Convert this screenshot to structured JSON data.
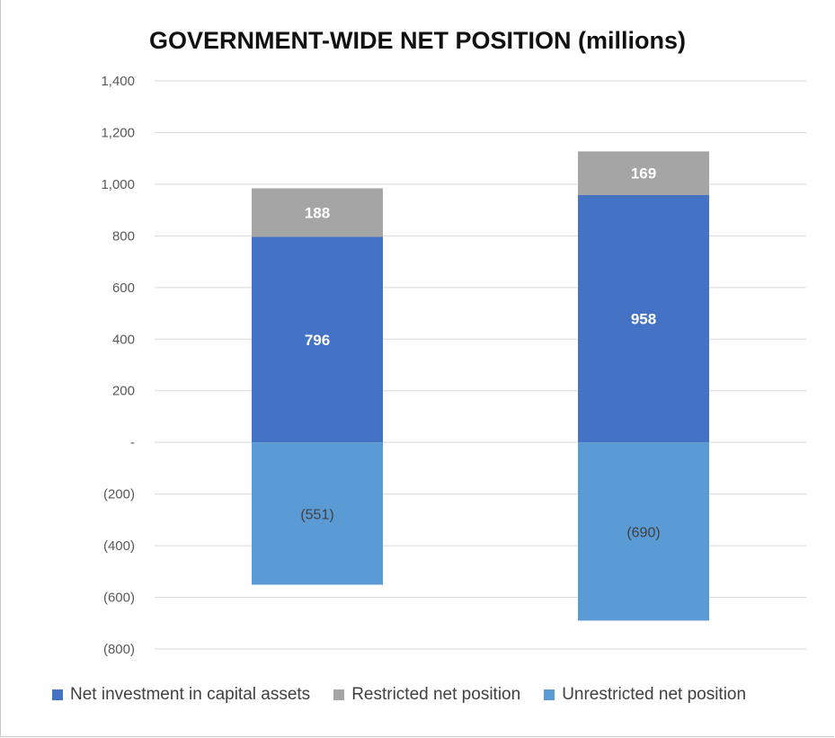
{
  "chart_data": {
    "type": "bar",
    "stacked": true,
    "title": "GOVERNMENT-WIDE NET POSITION (millions)",
    "categories": [
      "",
      ""
    ],
    "ylim": [
      -800,
      1400
    ],
    "yticks": [
      {
        "value": 1400,
        "label": "1,400"
      },
      {
        "value": 1200,
        "label": "1,200"
      },
      {
        "value": 1000,
        "label": "1,000"
      },
      {
        "value": 800,
        "label": "800"
      },
      {
        "value": 600,
        "label": "600"
      },
      {
        "value": 400,
        "label": "400"
      },
      {
        "value": 200,
        "label": "200"
      },
      {
        "value": 0,
        "label": "-"
      },
      {
        "value": -200,
        "label": "(200)"
      },
      {
        "value": -400,
        "label": "(400)"
      },
      {
        "value": -600,
        "label": "(600)"
      },
      {
        "value": -800,
        "label": "(800)"
      }
    ],
    "grid": true,
    "legend_position": "bottom",
    "series": [
      {
        "name": "Net investment in capital assets",
        "color": "#4472c4",
        "values": [
          796,
          958
        ],
        "labels": [
          "796",
          "958"
        ]
      },
      {
        "name": "Restricted net position",
        "color": "#a5a5a5",
        "values": [
          188,
          169
        ],
        "labels": [
          "188",
          "169"
        ]
      },
      {
        "name": "Unrestricted net position",
        "color": "#5b9bd5",
        "values": [
          -551,
          -690
        ],
        "labels": [
          "(551)",
          "(690)"
        ]
      }
    ]
  }
}
